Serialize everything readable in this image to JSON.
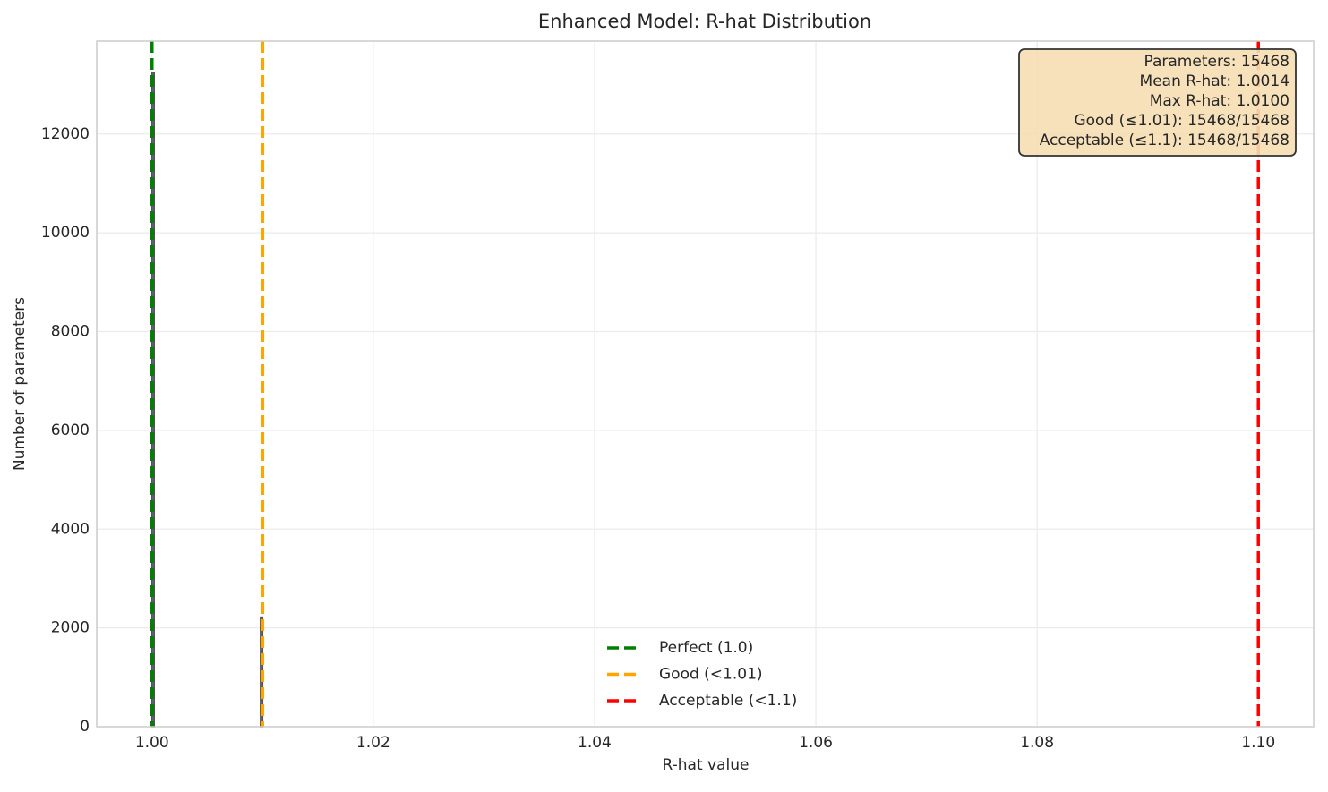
{
  "chart_data": {
    "type": "histogram",
    "title": "Enhanced Model: R-hat Distribution",
    "x_label": "R-hat value",
    "y_label": "Number of parameters",
    "bins": [
      1.0,
      1.0002,
      1.0004,
      1.0006,
      1.0008,
      1.001,
      1.0012,
      1.0014,
      1.0016,
      1.0018,
      1.002,
      1.0022,
      1.0024,
      1.0026,
      1.0028,
      1.003,
      1.0032,
      1.0034,
      1.0036,
      1.0038,
      1.004,
      1.0042,
      1.0044,
      1.0046,
      1.0048,
      1.005,
      1.0052,
      1.0054,
      1.0056,
      1.0058,
      1.006,
      1.0062,
      1.0064,
      1.0066,
      1.0068,
      1.007,
      1.0072,
      1.0074,
      1.0076,
      1.0078,
      1.008,
      1.0082,
      1.0084,
      1.0086,
      1.0088,
      1.009,
      1.0092,
      1.0094,
      1.0096,
      1.0098,
      1.01
    ],
    "values": [
      13250,
      0,
      0,
      0,
      0,
      0,
      0,
      0,
      0,
      0,
      0,
      0,
      0,
      0,
      0,
      0,
      0,
      0,
      0,
      0,
      0,
      0,
      0,
      0,
      0,
      0,
      0,
      0,
      0,
      0,
      0,
      0,
      0,
      0,
      0,
      0,
      0,
      0,
      0,
      0,
      0,
      0,
      0,
      0,
      0,
      0,
      0,
      0,
      0,
      2218
    ],
    "color": "#4a5a9a",
    "edge_color": "#333333",
    "vlines": [
      {
        "name": "Perfect (1.0)",
        "x": 1.0,
        "color": "#008000"
      },
      {
        "name": "Good (<1.01)",
        "x": 1.01,
        "color": "#ffa500"
      },
      {
        "name": "Acceptable (<1.1)",
        "x": 1.1,
        "color": "#ff0000"
      }
    ],
    "info_box": [
      "Parameters: 15468",
      "Mean R-hat: 1.0014",
      "Max R-hat: 1.0100",
      "Good (≤1.01): 15468/15468",
      "Acceptable (≤1.1): 15468/15468"
    ],
    "xlim": [
      0.995,
      1.105
    ],
    "xticks": [
      {
        "value": 1.0,
        "label": "1.00"
      },
      1.02,
      1.04,
      1.06,
      1.08,
      {
        "value": 1.1,
        "label": "1.10"
      }
    ],
    "ylim": [
      0,
      13880
    ],
    "yticks": [
      0,
      2000,
      4000,
      6000,
      8000,
      10000,
      12000
    ],
    "grid": true,
    "legend": "lower center"
  }
}
